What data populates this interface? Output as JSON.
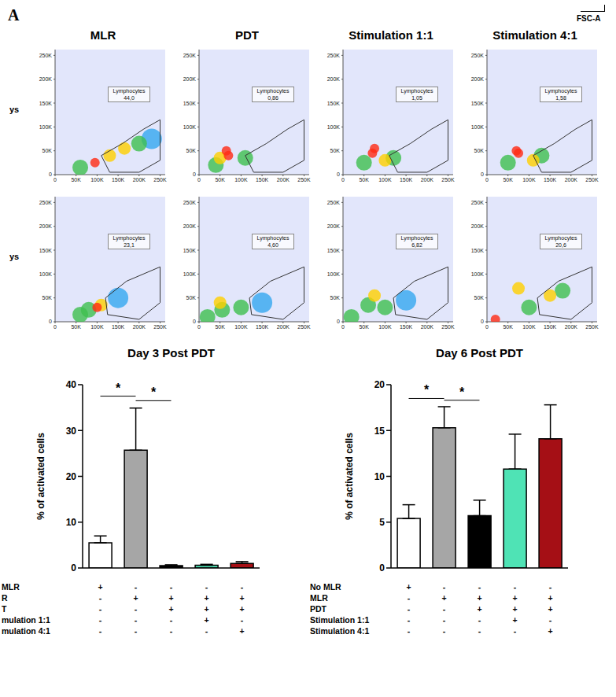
{
  "panel": "A",
  "x_axis_label": "FSC-A",
  "flow_plots": {
    "type": "scatter",
    "titles": [
      "MLR",
      "PDT",
      "Stimulation 1:1",
      "Stimulation 4:1"
    ],
    "row_labels": [
      "ys",
      "ys"
    ],
    "gate_label": "Lymphocytes",
    "xlim": [
      0,
      262144
    ],
    "ylim": [
      0,
      262144
    ],
    "xticks": [
      0,
      {
        "value": 50000,
        "label": "50K"
      },
      {
        "value": 100000,
        "label": "100K"
      },
      {
        "value": 150000,
        "label": "150K"
      },
      {
        "value": 200000,
        "label": "200K"
      },
      {
        "value": 250000,
        "label": "250K"
      }
    ],
    "yticks": [
      0,
      {
        "value": 50000,
        "label": "50K"
      },
      {
        "value": 100000,
        "label": "100K"
      },
      {
        "value": 150000,
        "label": "150K"
      },
      {
        "value": 200000,
        "label": "200K"
      },
      {
        "value": 250000,
        "label": "250K"
      }
    ],
    "rows": [
      [
        {
          "gate_value": {
            "value": 44.0,
            "label": "44,0"
          },
          "gate": [
            {
              "x": 110000,
              "y": 40000
            },
            {
              "x": 160000,
              "y": 65000
            },
            {
              "x": 210000,
              "y": 95000
            },
            {
              "x": 250000,
              "y": 115000
            },
            {
              "x": 250000,
              "y": 30000
            },
            {
              "x": 200000,
              "y": 5000
            },
            {
              "x": 130000,
              "y": 5000
            },
            {
              "x": 110000,
              "y": 40000
            }
          ],
          "points": [
            {
              "x": 95000,
              "y": 25000,
              "density": 4
            },
            {
              "x": 130000,
              "y": 40000,
              "density": 3
            },
            {
              "x": 165000,
              "y": 55000,
              "density": 3
            },
            {
              "x": 200000,
              "y": 65000,
              "density": 2
            },
            {
              "x": 230000,
              "y": 75000,
              "density": 1
            },
            {
              "x": 60000,
              "y": 15000,
              "density": 2
            }
          ]
        },
        {
          "gate_value": {
            "value": 0.86,
            "label": "0,86"
          },
          "gate": [
            {
              "x": 110000,
              "y": 40000
            },
            {
              "x": 160000,
              "y": 65000
            },
            {
              "x": 210000,
              "y": 95000
            },
            {
              "x": 250000,
              "y": 115000
            },
            {
              "x": 250000,
              "y": 30000
            },
            {
              "x": 200000,
              "y": 5000
            },
            {
              "x": 130000,
              "y": 5000
            },
            {
              "x": 110000,
              "y": 40000
            }
          ],
          "points": [
            {
              "x": 65000,
              "y": 50000,
              "density": 4
            },
            {
              "x": 70000,
              "y": 40000,
              "density": 4
            },
            {
              "x": 50000,
              "y": 35000,
              "density": 3
            },
            {
              "x": 110000,
              "y": 35000,
              "density": 2
            },
            {
              "x": 40000,
              "y": 20000,
              "density": 2
            }
          ]
        },
        {
          "gate_value": {
            "value": 1.05,
            "label": "1,05"
          },
          "gate": [
            {
              "x": 110000,
              "y": 40000
            },
            {
              "x": 160000,
              "y": 65000
            },
            {
              "x": 210000,
              "y": 95000
            },
            {
              "x": 250000,
              "y": 115000
            },
            {
              "x": 250000,
              "y": 30000
            },
            {
              "x": 200000,
              "y": 5000
            },
            {
              "x": 130000,
              "y": 5000
            },
            {
              "x": 110000,
              "y": 40000
            }
          ],
          "points": [
            {
              "x": 75000,
              "y": 55000,
              "density": 4
            },
            {
              "x": 70000,
              "y": 45000,
              "density": 4
            },
            {
              "x": 100000,
              "y": 30000,
              "density": 3
            },
            {
              "x": 120000,
              "y": 35000,
              "density": 2
            },
            {
              "x": 50000,
              "y": 25000,
              "density": 2
            }
          ]
        },
        {
          "gate_value": {
            "value": 1.58,
            "label": "1,58"
          },
          "gate": [
            {
              "x": 110000,
              "y": 40000
            },
            {
              "x": 160000,
              "y": 65000
            },
            {
              "x": 210000,
              "y": 95000
            },
            {
              "x": 250000,
              "y": 115000
            },
            {
              "x": 250000,
              "y": 30000
            },
            {
              "x": 200000,
              "y": 5000
            },
            {
              "x": 130000,
              "y": 5000
            },
            {
              "x": 110000,
              "y": 40000
            }
          ],
          "points": [
            {
              "x": 70000,
              "y": 50000,
              "density": 4
            },
            {
              "x": 75000,
              "y": 45000,
              "density": 4
            },
            {
              "x": 110000,
              "y": 30000,
              "density": 3
            },
            {
              "x": 130000,
              "y": 40000,
              "density": 2
            },
            {
              "x": 50000,
              "y": 25000,
              "density": 2
            }
          ]
        }
      ],
      [
        {
          "gate_value": {
            "value": 23.1,
            "label": "23,1"
          },
          "gate": [
            {
              "x": 120000,
              "y": 50000
            },
            {
              "x": 170000,
              "y": 85000
            },
            {
              "x": 250000,
              "y": 115000
            },
            {
              "x": 250000,
              "y": 40000
            },
            {
              "x": 200000,
              "y": 5000
            },
            {
              "x": 125000,
              "y": 15000
            },
            {
              "x": 120000,
              "y": 50000
            }
          ],
          "points": [
            {
              "x": 100000,
              "y": 30000,
              "density": 4
            },
            {
              "x": 110000,
              "y": 35000,
              "density": 3
            },
            {
              "x": 60000,
              "y": 15000,
              "density": 2
            },
            {
              "x": 80000,
              "y": 25000,
              "density": 2
            },
            {
              "x": 150000,
              "y": 50000,
              "density": 1
            }
          ]
        },
        {
          "gate_value": {
            "value": 4.6,
            "label": "4,60"
          },
          "gate": [
            {
              "x": 120000,
              "y": 50000
            },
            {
              "x": 170000,
              "y": 85000
            },
            {
              "x": 250000,
              "y": 115000
            },
            {
              "x": 250000,
              "y": 40000
            },
            {
              "x": 200000,
              "y": 5000
            },
            {
              "x": 125000,
              "y": 15000
            },
            {
              "x": 120000,
              "y": 50000
            }
          ],
          "points": [
            {
              "x": 50000,
              "y": 40000,
              "density": 3
            },
            {
              "x": 55000,
              "y": 25000,
              "density": 2
            },
            {
              "x": 100000,
              "y": 30000,
              "density": 2
            },
            {
              "x": 150000,
              "y": 40000,
              "density": 1
            },
            {
              "x": 20000,
              "y": 10000,
              "density": 2
            }
          ]
        },
        {
          "gate_value": {
            "value": 6.82,
            "label": "6,82"
          },
          "gate": [
            {
              "x": 120000,
              "y": 50000
            },
            {
              "x": 170000,
              "y": 85000
            },
            {
              "x": 250000,
              "y": 115000
            },
            {
              "x": 250000,
              "y": 40000
            },
            {
              "x": 200000,
              "y": 5000
            },
            {
              "x": 125000,
              "y": 15000
            },
            {
              "x": 120000,
              "y": 50000
            }
          ],
          "points": [
            {
              "x": 75000,
              "y": 55000,
              "density": 3
            },
            {
              "x": 100000,
              "y": 30000,
              "density": 2
            },
            {
              "x": 60000,
              "y": 35000,
              "density": 2
            },
            {
              "x": 150000,
              "y": 45000,
              "density": 1
            },
            {
              "x": 20000,
              "y": 10000,
              "density": 2
            }
          ]
        },
        {
          "gate_value": {
            "value": 20.6,
            "label": "20,6"
          },
          "gate": [
            {
              "x": 120000,
              "y": 50000
            },
            {
              "x": 170000,
              "y": 85000
            },
            {
              "x": 250000,
              "y": 115000
            },
            {
              "x": 250000,
              "y": 40000
            },
            {
              "x": 200000,
              "y": 5000
            },
            {
              "x": 125000,
              "y": 15000
            },
            {
              "x": 120000,
              "y": 50000
            }
          ],
          "points": [
            {
              "x": 75000,
              "y": 70000,
              "density": 3
            },
            {
              "x": 100000,
              "y": 30000,
              "density": 2
            },
            {
              "x": 150000,
              "y": 55000,
              "density": 3
            },
            {
              "x": 180000,
              "y": 65000,
              "density": 2
            },
            {
              "x": 20000,
              "y": 5000,
              "density": 4
            }
          ]
        }
      ]
    ]
  },
  "chart_data": [
    {
      "type": "bar",
      "title": "Day 3 Post PDT",
      "y_label": "% of activated cells",
      "categories": [
        null,
        null,
        null,
        null,
        null
      ],
      "values": [
        5.5,
        25.7,
        0.5,
        0.6,
        1.0
      ],
      "errors": [
        1.5,
        9.2,
        0.2,
        0.2,
        0.4
      ],
      "colors": [
        "#ffffff",
        "#a6a6a6",
        "#000000",
        "#4fe3b5",
        "#a50f15"
      ],
      "ylim": [
        0,
        40
      ],
      "yticks": [
        0,
        10,
        20,
        30,
        40
      ],
      "significance": [
        {
          "from": 0,
          "to": 1,
          "y": 37.5,
          "label": "*"
        },
        {
          "from": 1,
          "to": 2,
          "y": 36.5,
          "label": "*"
        }
      ],
      "conditions": {
        "labels": [
          "MLR",
          "R",
          "T",
          "mulation 1:1",
          "mulation 4:1"
        ],
        "marks": [
          [
            "+",
            "-",
            "-",
            "-",
            "-"
          ],
          [
            "-",
            "+",
            "+",
            "+",
            "+"
          ],
          [
            "-",
            "-",
            "+",
            "+",
            "+"
          ],
          [
            "-",
            "-",
            "-",
            "+",
            "-"
          ],
          [
            "-",
            "-",
            "-",
            "-",
            "+"
          ]
        ]
      }
    },
    {
      "type": "bar",
      "title": "Day 6 Post PDT",
      "y_label": "% of activated cells",
      "categories": [
        null,
        null,
        null,
        null,
        null
      ],
      "values": [
        5.4,
        15.3,
        5.7,
        10.8,
        14.1
      ],
      "errors": [
        1.5,
        2.3,
        1.7,
        3.8,
        3.7
      ],
      "colors": [
        "#ffffff",
        "#a6a6a6",
        "#000000",
        "#4fe3b5",
        "#a50f15"
      ],
      "ylim": [
        0,
        20
      ],
      "yticks": [
        0,
        5,
        10,
        15,
        20
      ],
      "significance": [
        {
          "from": 0,
          "to": 1,
          "y": 18.5,
          "label": "*"
        },
        {
          "from": 1,
          "to": 2,
          "y": 18.3,
          "label": "*"
        }
      ],
      "conditions": {
        "labels": [
          "No MLR",
          "MLR",
          "PDT",
          "Stimulation 1:1",
          "Stimulation 4:1"
        ],
        "marks": [
          [
            "+",
            "-",
            "-",
            "-",
            "-"
          ],
          [
            "-",
            "+",
            "+",
            "+",
            "+"
          ],
          [
            "-",
            "-",
            "+",
            "+",
            "+"
          ],
          [
            "-",
            "-",
            "-",
            "+",
            "-"
          ],
          [
            "-",
            "-",
            "-",
            "-",
            "+"
          ]
        ]
      }
    }
  ]
}
